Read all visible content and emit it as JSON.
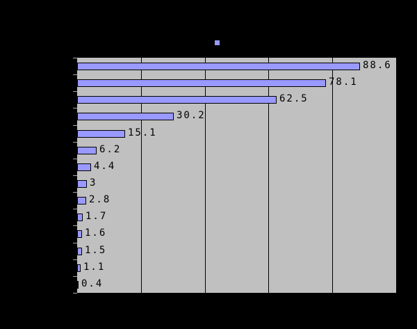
{
  "chart_data": {
    "type": "bar",
    "orientation": "horizontal",
    "values": [
      88.6,
      78.1,
      62.5,
      30.2,
      15.1,
      6.2,
      4.4,
      3,
      2.8,
      1.7,
      1.6,
      1.5,
      1.1,
      0.4
    ],
    "labels": [
      "88.6",
      "78.1",
      "62.5",
      "30.2",
      "15.1",
      "6.2",
      "4.4",
      "3",
      "2.8",
      "1.7",
      "1.6",
      "1.5",
      "1.1",
      "0.4"
    ],
    "num_categories": 14,
    "xlim": [
      0,
      100
    ],
    "x_gridlines": [
      20,
      40,
      60,
      80
    ],
    "grid": "vertical-only",
    "legend_position": "top-center",
    "category_tick_count": 15,
    "colors": {
      "page_bg": "#000000",
      "plot_bg": "#c0c0c0",
      "bar_fill": "#9999ff",
      "bar_border": "#000000",
      "gridline": "#000000",
      "data_label": "#000000",
      "legend_marker": "#9999ff"
    }
  }
}
